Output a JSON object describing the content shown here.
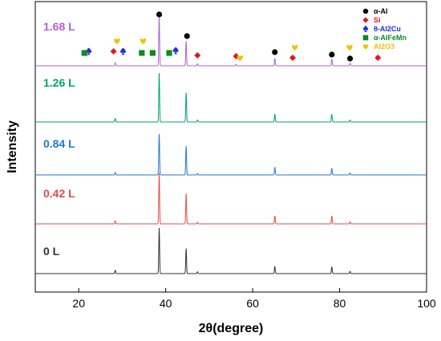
{
  "chart_data": {
    "type": "line",
    "xlabel": "2θ(degree)",
    "ylabel": "Intensity",
    "xlim": [
      10,
      100
    ],
    "xticks": [
      20,
      40,
      60,
      80,
      100
    ],
    "series": [
      {
        "name": "1.68 L",
        "color": "#b05fd6",
        "peaks": [
          [
            28.4,
            0.06
          ],
          [
            38.5,
            1.0
          ],
          [
            44.7,
            0.5
          ],
          [
            47.3,
            0.04
          ],
          [
            56.2,
            0.03
          ],
          [
            65.1,
            0.15
          ],
          [
            78.2,
            0.14
          ],
          [
            82.4,
            0.05
          ]
        ]
      },
      {
        "name": "1.26 L",
        "color": "#00a366",
        "peaks": [
          [
            28.4,
            0.07
          ],
          [
            38.5,
            1.0
          ],
          [
            44.7,
            0.6
          ],
          [
            47.3,
            0.04
          ],
          [
            65.1,
            0.16
          ],
          [
            78.2,
            0.16
          ],
          [
            82.4,
            0.04
          ]
        ]
      },
      {
        "name": "0.84 L",
        "color": "#1e78d2",
        "peaks": [
          [
            28.4,
            0.05
          ],
          [
            38.5,
            0.85
          ],
          [
            44.7,
            0.6
          ],
          [
            47.3,
            0.03
          ],
          [
            65.1,
            0.16
          ],
          [
            78.2,
            0.14
          ],
          [
            82.4,
            0.04
          ]
        ]
      },
      {
        "name": "0.42 L",
        "color": "#e84848",
        "peaks": [
          [
            28.4,
            0.06
          ],
          [
            38.5,
            1.0
          ],
          [
            44.7,
            0.6
          ],
          [
            47.3,
            0.03
          ],
          [
            65.1,
            0.16
          ],
          [
            78.2,
            0.16
          ],
          [
            82.4,
            0.04
          ]
        ]
      },
      {
        "name": "0 L",
        "color": "#333333",
        "peaks": [
          [
            28.4,
            0.07
          ],
          [
            38.5,
            1.0
          ],
          [
            44.7,
            0.55
          ],
          [
            47.3,
            0.04
          ],
          [
            65.1,
            0.16
          ],
          [
            78.2,
            0.15
          ],
          [
            82.4,
            0.05
          ]
        ]
      }
    ],
    "legend": [
      {
        "symbol": "circle",
        "label": "α-Al",
        "color": "#000000"
      },
      {
        "symbol": "diamond",
        "label": "Si",
        "color": "#e8151b"
      },
      {
        "symbol": "spade",
        "label": "θ-Al2Cu",
        "color": "#1d2fe0"
      },
      {
        "symbol": "square",
        "label": "α-AlFeMn",
        "color": "#0e8a1e"
      },
      {
        "symbol": "heart",
        "label": "Al2O3",
        "color": "#f2c200"
      }
    ],
    "markers": [
      {
        "symbol": "circle",
        "color": "#000000",
        "x": [
          38.5,
          44.9,
          65.1,
          78.2,
          82.4
        ]
      },
      {
        "symbol": "diamond",
        "color": "#e8151b",
        "x": [
          28.0,
          47.3,
          56.2,
          69.2,
          88.8
        ]
      },
      {
        "symbol": "spade",
        "color": "#1d2fe0",
        "x": [
          22.3,
          30.2,
          42.3
        ]
      },
      {
        "symbol": "square",
        "color": "#0e8a1e",
        "x": [
          21.3,
          34.5,
          37.0,
          40.8
        ]
      },
      {
        "symbol": "heart",
        "color": "#f2c200",
        "x": [
          28.8,
          34.8,
          57.1,
          69.7,
          82.3
        ]
      }
    ]
  }
}
